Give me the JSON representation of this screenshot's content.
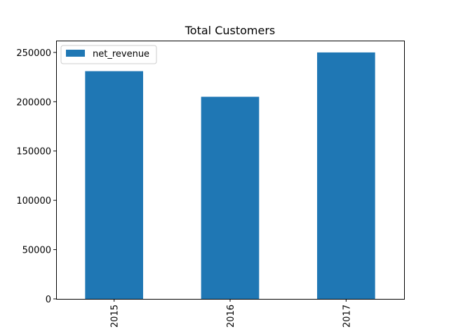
{
  "chart_data": {
    "type": "bar",
    "title": "Total Customers",
    "xlabel": "",
    "ylabel": "",
    "categories": [
      "2015",
      "2016",
      "2017"
    ],
    "series": [
      {
        "name": "net_revenue",
        "values": [
          231000,
          205000,
          250000
        ]
      }
    ],
    "ylim": [
      0,
      262000
    ],
    "yticks": [
      0,
      50000,
      100000,
      150000,
      200000,
      250000
    ],
    "grid": false,
    "legend_position": "top-left",
    "colors": {
      "bar": "#1f77b4",
      "axis": "#000000",
      "background": "#ffffff"
    }
  }
}
